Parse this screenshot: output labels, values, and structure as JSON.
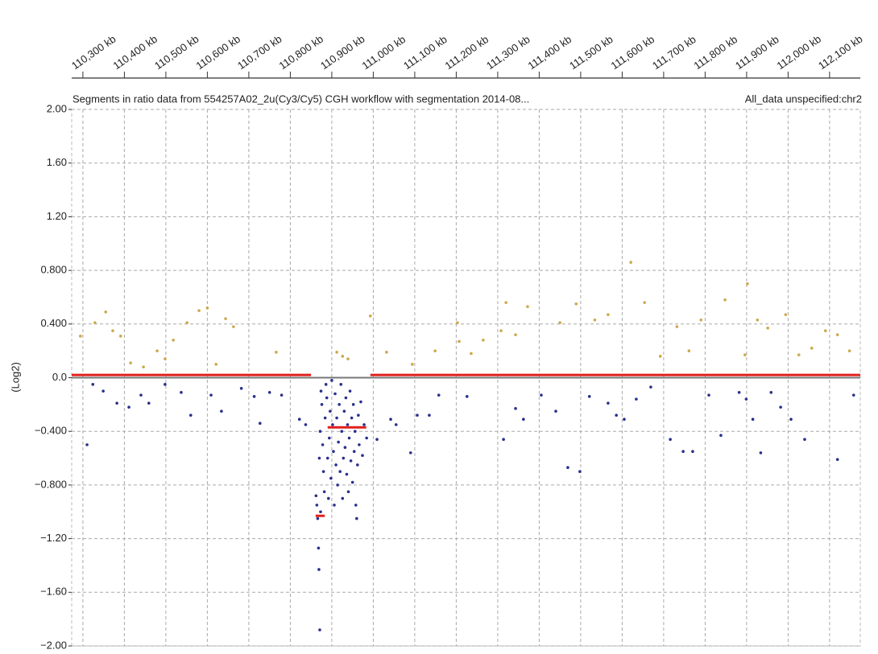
{
  "chart_data": {
    "type": "scatter",
    "title": "Segments in ratio data from 554257A02_2u(Cy3/Cy5) CGH workflow with segmentation 2014-08...",
    "subtitle": "All_data unspecified:chr2",
    "y_label": "(Log2)",
    "xlim": [
      110273,
      112174
    ],
    "ylim": [
      -2,
      2
    ],
    "xticks": [
      {
        "value": 110300,
        "label": "110,300 kb"
      },
      {
        "value": 110400,
        "label": "110,400 kb"
      },
      {
        "value": 110500,
        "label": "110,500 kb"
      },
      {
        "value": 110600,
        "label": "110,600 kb"
      },
      {
        "value": 110700,
        "label": "110,700 kb"
      },
      {
        "value": 110800,
        "label": "110,800 kb"
      },
      {
        "value": 110900,
        "label": "110,900 kb"
      },
      {
        "value": 111000,
        "label": "111,000 kb"
      },
      {
        "value": 111100,
        "label": "111,100 kb"
      },
      {
        "value": 111200,
        "label": "111,200 kb"
      },
      {
        "value": 111300,
        "label": "111,300 kb"
      },
      {
        "value": 111400,
        "label": "111,400 kb"
      },
      {
        "value": 111500,
        "label": "111,500 kb"
      },
      {
        "value": 111600,
        "label": "111,600 kb"
      },
      {
        "value": 111700,
        "label": "111,700 kb"
      },
      {
        "value": 111800,
        "label": "111,800 kb"
      },
      {
        "value": 111900,
        "label": "111,900 kb"
      },
      {
        "value": 112000,
        "label": "112,000 kb"
      },
      {
        "value": 112100,
        "label": "112,100 kb"
      }
    ],
    "yticks": [
      {
        "value": 2,
        "label": "2.00"
      },
      {
        "value": 1.6,
        "label": "1.60"
      },
      {
        "value": 1.2,
        "label": "1.20"
      },
      {
        "value": 0.8,
        "label": "0.800"
      },
      {
        "value": 0.4,
        "label": "0.400"
      },
      {
        "value": 0,
        "label": "0.0"
      },
      {
        "value": -0.4,
        "label": "−0.400"
      },
      {
        "value": -0.8,
        "label": "−0.800"
      },
      {
        "value": -1.2,
        "label": "−1.20"
      },
      {
        "value": -1.6,
        "label": "−1.60"
      },
      {
        "value": -2,
        "label": "−2.00"
      }
    ],
    "grid": true,
    "series": [
      {
        "color": "#c9a94a",
        "x": [
          110294,
          110329,
          110355,
          110372,
          110391,
          110415,
          110446,
          110479,
          110498,
          110518,
          110551,
          110580,
          110600,
          110621,
          110644,
          110663,
          110766,
          110912,
          110926,
          110939,
          110993,
          111032,
          111094,
          111149,
          111203,
          111207,
          111236,
          111265,
          111308,
          111320,
          111343,
          111372,
          111450,
          111489,
          111534,
          111566,
          111621,
          111654,
          111692,
          111732,
          111761,
          111790,
          111848,
          111896,
          111926,
          111951,
          111994,
          112026,
          112057,
          112090,
          112119,
          112148,
          111902
        ],
        "values": [
          0.31,
          0.41,
          0.49,
          0.35,
          0.31,
          0.11,
          0.08,
          0.2,
          0.14,
          0.28,
          0.41,
          0.5,
          0.52,
          0.1,
          0.44,
          0.38,
          0.19,
          0.19,
          0.16,
          0.14,
          0.46,
          0.19,
          0.1,
          0.2,
          0.41,
          0.27,
          0.18,
          0.28,
          0.35,
          0.56,
          0.32,
          0.53,
          0.41,
          0.55,
          0.43,
          0.47,
          0.86,
          0.56,
          0.16,
          0.38,
          0.2,
          0.43,
          0.58,
          0.17,
          0.43,
          0.37,
          0.47,
          0.17,
          0.22,
          0.35,
          0.32,
          0.2,
          0.7
        ]
      },
      {
        "color": "#2a2f8c",
        "x": [
          110310,
          110324,
          110349,
          110382,
          110411,
          110440,
          110459,
          110498,
          110537,
          110560,
          110609,
          110634,
          110682,
          110713,
          110727,
          110750,
          110779,
          110822,
          110837,
          111009,
          111042,
          111055,
          111090,
          111106,
          111135,
          111158,
          111226,
          111314,
          111343,
          111362,
          111405,
          111440,
          111469,
          111498,
          111521,
          111566,
          111586,
          111605,
          111634,
          111669,
          111716,
          111747,
          111770,
          111809,
          111838,
          111882,
          111899,
          111915,
          111934,
          111959,
          111982,
          112007,
          112040,
          112119,
          112158,
          110862,
          110864,
          110866,
          110868,
          110869,
          110871,
          110873,
          110870,
          110872,
          110874,
          110876,
          110878,
          110880,
          110882,
          110884,
          110886,
          110888,
          110890,
          110892,
          110894,
          110896,
          110898,
          110900,
          110902,
          110904,
          110906,
          110908,
          110910,
          110912,
          110914,
          110916,
          110918,
          110920,
          110922,
          110924,
          110926,
          110928,
          110930,
          110932,
          110934,
          110936,
          110938,
          110940,
          110942,
          110944,
          110946,
          110948,
          110950,
          110952,
          110954,
          110956,
          110958,
          110960,
          110962,
          110964,
          110966,
          110970,
          110974,
          110978,
          110984
        ],
        "values": [
          -0.5,
          -0.05,
          -0.1,
          -0.19,
          -0.22,
          -0.13,
          -0.19,
          -0.05,
          -0.11,
          -0.28,
          -0.13,
          -0.25,
          -0.08,
          -0.14,
          -0.34,
          -0.11,
          -0.13,
          -0.31,
          -0.35,
          -0.46,
          -0.31,
          -0.35,
          -0.56,
          -0.28,
          -0.28,
          -0.13,
          -0.14,
          -0.46,
          -0.23,
          -0.31,
          -0.13,
          -0.25,
          -0.67,
          -0.7,
          -0.14,
          -0.19,
          -0.28,
          -0.31,
          -0.16,
          -0.07,
          -0.46,
          -0.55,
          -0.55,
          -0.13,
          -0.43,
          -0.11,
          -0.16,
          -0.31,
          -0.56,
          -0.11,
          -0.22,
          -0.31,
          -0.46,
          -0.61,
          -0.13,
          -0.88,
          -0.95,
          -1.05,
          -1.27,
          -1.43,
          -1.88,
          -1.0,
          -0.6,
          -0.4,
          -0.1,
          -0.2,
          -0.5,
          -0.7,
          -0.85,
          -0.3,
          -0.05,
          -0.15,
          -0.6,
          -0.9,
          -0.45,
          -0.25,
          -0.75,
          -0.02,
          -0.35,
          -0.55,
          -0.95,
          -0.12,
          -0.65,
          -0.3,
          -0.8,
          -0.48,
          -0.2,
          -0.7,
          -0.05,
          -0.4,
          -0.9,
          -0.6,
          -0.25,
          -0.52,
          -0.15,
          -0.72,
          -0.35,
          -0.85,
          -0.45,
          -0.1,
          -0.62,
          -0.3,
          -0.78,
          -0.2,
          -0.55,
          -0.4,
          -0.95,
          -1.05,
          -0.65,
          -0.28,
          -0.5,
          -0.18,
          -0.58,
          -0.35,
          -0.45
        ]
      }
    ],
    "segment_color": "#e0201c",
    "segments": [
      {
        "x": [
          110273,
          110850
        ],
        "value": 0.02
      },
      {
        "x": [
          110993,
          112174
        ],
        "value": 0.02
      },
      {
        "x": [
          110890,
          110983
        ],
        "value": -0.37
      },
      {
        "x": [
          110861,
          110883
        ],
        "value": -1.03
      }
    ]
  }
}
